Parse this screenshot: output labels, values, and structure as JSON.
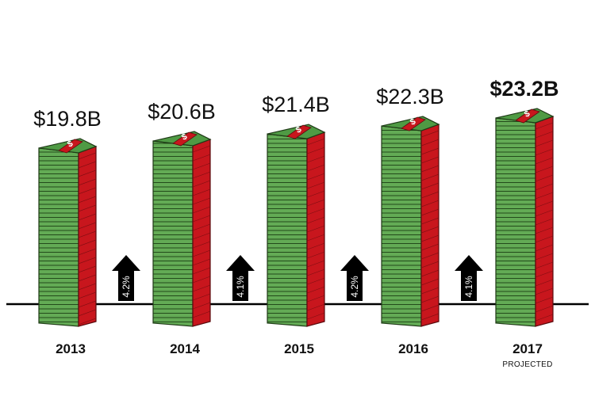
{
  "chart_data": {
    "type": "bar",
    "categories": [
      "2013",
      "2014",
      "2015",
      "2016",
      "2017"
    ],
    "category_sublabels": [
      "",
      "",
      "",
      "",
      "PROJECTED"
    ],
    "values": [
      19.8,
      20.6,
      21.4,
      22.3,
      23.2
    ],
    "value_labels": [
      "$19.8B",
      "$20.6B",
      "$21.4B",
      "$22.3B",
      "$23.2B"
    ],
    "emphasized_label_index": 4,
    "growth_labels": [
      "4.2%",
      "4.1%",
      "4.2%",
      "4.1%"
    ],
    "bar_style": "stacks of dollar bills",
    "bar_icon_text": "$",
    "colors": {
      "bill_green": "#5fa852",
      "bill_edge": "#1e3a16",
      "band_red": "#c8161d",
      "arrow": "#000000"
    },
    "title": "",
    "xlabel": "",
    "ylabel": ""
  }
}
